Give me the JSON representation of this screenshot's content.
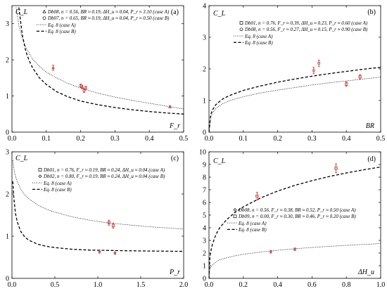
{
  "chart_data": [
    {
      "type": "scatter",
      "panel_label": "(a)",
      "xlabel": "F_r",
      "ylabel": "C_L",
      "xlim": [
        0,
        0.5
      ],
      "ylim": [
        0,
        3.5
      ],
      "xticks": [
        "0.0",
        "0.1",
        "0.2",
        "0.3",
        "0.4",
        "0.5"
      ],
      "xtick_values": [
        0,
        0.1,
        0.2,
        0.3,
        0.4,
        0.5
      ],
      "yticks": [
        "0",
        "1",
        "2",
        "3"
      ],
      "ytick_values": [
        0,
        1,
        2,
        3
      ],
      "legend_placement": "top-center",
      "legend": [
        {
          "marker": "triangle",
          "label": "Db08, n = 0.56, BR ≈ 0.19, ΔH_u ≈ 0.04, P_r ≈ 3.10 (case A)"
        },
        {
          "marker": "circle",
          "label": "Db07, n = 0.65, BR ≈ 0.19, ΔH_u ≈ 0.04, P_r ≈ 0.50 (case B)"
        },
        {
          "line": "dotted",
          "label": "Eq. 8 (case A)"
        },
        {
          "line": "dashed",
          "label": "Eq. 8 (case B)"
        }
      ],
      "series": [
        {
          "name": "Db08",
          "marker": "triangle",
          "points": [
            {
              "x": 0.12,
              "y": 1.78,
              "err": 0.07
            },
            {
              "x": 0.205,
              "y": 1.25,
              "err": 0.05
            },
            {
              "x": 0.46,
              "y": 0.7,
              "err": 0.03
            }
          ]
        },
        {
          "name": "Db07",
          "marker": "circle",
          "points": [
            {
              "x": 0.2,
              "y": 1.28,
              "err": 0.05
            },
            {
              "x": 0.21,
              "y": 1.15,
              "err": 0.05
            },
            {
              "x": 0.215,
              "y": 1.22,
              "err": 0.05
            }
          ]
        }
      ],
      "curves": [
        {
          "name": "Eq. 8 (case A)",
          "style": "dotted",
          "x": [
            0.012,
            0.02,
            0.03,
            0.04,
            0.06,
            0.08,
            0.1,
            0.13,
            0.16,
            0.2,
            0.25,
            0.3,
            0.35,
            0.4,
            0.45,
            0.5
          ],
          "y": [
            3.45,
            2.95,
            2.6,
            2.35,
            2.02,
            1.82,
            1.66,
            1.5,
            1.36,
            1.22,
            1.08,
            0.97,
            0.88,
            0.8,
            0.72,
            0.64
          ]
        },
        {
          "name": "Eq. 8 (case B)",
          "style": "dashed",
          "x": [
            0.02,
            0.03,
            0.04,
            0.05,
            0.06,
            0.08,
            0.1,
            0.13,
            0.16,
            0.2,
            0.25,
            0.3,
            0.35,
            0.4,
            0.45,
            0.5
          ],
          "y": [
            3.45,
            2.7,
            2.25,
            1.98,
            1.78,
            1.5,
            1.32,
            1.12,
            0.99,
            0.86,
            0.76,
            0.68,
            0.62,
            0.57,
            0.53,
            0.5
          ]
        }
      ]
    },
    {
      "type": "scatter",
      "panel_label": "(b)",
      "xlabel": "BR",
      "ylabel": "C_L",
      "xlim": [
        0,
        0.5
      ],
      "ylim": [
        0,
        4
      ],
      "xticks": [
        "0.0",
        "0.1",
        "0.2",
        "0.3",
        "0.4",
        "0.5"
      ],
      "xtick_values": [
        0,
        0.1,
        0.2,
        0.3,
        0.4,
        0.5
      ],
      "yticks": [
        "0",
        "1",
        "2",
        "3",
        "4"
      ],
      "ytick_values": [
        0,
        1,
        2,
        3,
        4
      ],
      "legend_placement": "top-center",
      "legend": [
        {
          "marker": "square",
          "label": "Db01, n = 0.76, F_r ≈ 0.39, ΔH_u ≈ 0.23, P_r ≈ 0.60 (case A)"
        },
        {
          "marker": "circle",
          "label": "Db08, n = 0.56, F_r ≈ 0.27, ΔH_u ≈ 0.15, P_r ≈ 0.90 (case B)"
        },
        {
          "line": "dotted",
          "label": "Eq. 8 (case A)"
        },
        {
          "line": "dashed",
          "label": "Eq. 8 (case B)"
        }
      ],
      "series": [
        {
          "name": "Db01",
          "marker": "square",
          "points": [
            {
              "x": 0.4,
              "y": 1.52,
              "err": 0.07
            },
            {
              "x": 0.44,
              "y": 1.75,
              "err": 0.07
            }
          ]
        },
        {
          "name": "Db08",
          "marker": "circle",
          "points": [
            {
              "x": 0.305,
              "y": 1.95,
              "err": 0.1
            },
            {
              "x": 0.32,
              "y": 2.18,
              "err": 0.1
            }
          ]
        }
      ],
      "curves": [
        {
          "name": "Eq. 8 (case A)",
          "style": "dotted",
          "x": [
            0,
            0.005,
            0.01,
            0.02,
            0.04,
            0.06,
            0.1,
            0.15,
            0.2,
            0.25,
            0.3,
            0.35,
            0.4,
            0.45,
            0.5
          ],
          "y": [
            0,
            0.48,
            0.6,
            0.75,
            0.9,
            1.0,
            1.12,
            1.24,
            1.33,
            1.41,
            1.49,
            1.56,
            1.62,
            1.68,
            1.74
          ]
        },
        {
          "name": "Eq. 8 (case B)",
          "style": "dashed",
          "x": [
            0,
            0.005,
            0.01,
            0.02,
            0.04,
            0.06,
            0.1,
            0.15,
            0.2,
            0.25,
            0.3,
            0.35,
            0.4,
            0.45,
            0.5
          ],
          "y": [
            0,
            0.55,
            0.7,
            0.87,
            1.05,
            1.16,
            1.32,
            1.46,
            1.58,
            1.68,
            1.77,
            1.85,
            1.92,
            1.99,
            2.05
          ]
        }
      ]
    },
    {
      "type": "scatter",
      "panel_label": "(c)",
      "xlabel": "P_r",
      "ylabel": "C_L",
      "xlim": [
        0,
        2
      ],
      "ylim": [
        0,
        3
      ],
      "xticks": [
        "0.0",
        "0.5",
        "1.0",
        "1.5",
        "2.0"
      ],
      "xtick_values": [
        0,
        0.5,
        1,
        1.5,
        2
      ],
      "yticks": [
        "0",
        "1",
        "2",
        "3"
      ],
      "ytick_values": [
        0,
        1,
        2,
        3
      ],
      "legend_placement": "top-center",
      "legend": [
        {
          "marker": "square",
          "label": "Db01, n = 0.76, F_r ≈ 0.19, BR ≈ 0.24, ΔH_u ≈ 0.04 (case A)"
        },
        {
          "marker": "diamond",
          "label": "Db02, n = 0.80, F_r ≈ 0.19, BR ≈ 0.24, ΔH_u ≈ 0.04 (case B)"
        },
        {
          "line": "dotted",
          "label": "Eq. 8 (case A)"
        },
        {
          "line": "dashed",
          "label": "Eq. 8 (case B)"
        }
      ],
      "series": [
        {
          "name": "Db01",
          "marker": "square",
          "points": [
            {
              "x": 1.13,
              "y": 1.32,
              "err": 0.06
            },
            {
              "x": 1.18,
              "y": 1.25,
              "err": 0.06
            }
          ]
        },
        {
          "name": "Db02",
          "marker": "diamond",
          "points": [
            {
              "x": 1.02,
              "y": 0.63,
              "err": 0.03
            },
            {
              "x": 1.2,
              "y": 0.6,
              "err": 0.03
            }
          ]
        }
      ],
      "curves": [
        {
          "name": "Eq. 8 (case A)",
          "style": "dotted",
          "x": [
            0.01,
            0.03,
            0.06,
            0.1,
            0.15,
            0.2,
            0.3,
            0.4,
            0.5,
            0.7,
            0.9,
            1.1,
            1.3,
            1.5,
            1.7,
            2.0
          ],
          "y": [
            2.8,
            2.5,
            2.3,
            2.12,
            1.98,
            1.88,
            1.74,
            1.64,
            1.57,
            1.46,
            1.38,
            1.32,
            1.28,
            1.24,
            1.21,
            1.17
          ]
        },
        {
          "name": "Eq. 8 (case B)",
          "style": "dashed",
          "x": [
            0.01,
            0.02,
            0.04,
            0.06,
            0.1,
            0.15,
            0.2,
            0.3,
            0.4,
            0.5,
            0.7,
            0.9,
            1.2,
            1.5,
            2.0
          ],
          "y": [
            2.3,
            1.95,
            1.55,
            1.35,
            1.12,
            0.98,
            0.9,
            0.81,
            0.76,
            0.73,
            0.69,
            0.67,
            0.66,
            0.65,
            0.64
          ]
        }
      ]
    },
    {
      "type": "scatter",
      "panel_label": "(d)",
      "xlabel": "ΔH_u",
      "ylabel": "C_L",
      "xlim": [
        0,
        1
      ],
      "ylim": [
        0,
        10
      ],
      "xticks": [
        "0.0",
        "0.2",
        "0.4",
        "0.6",
        "0.8",
        "1.0"
      ],
      "xtick_values": [
        0,
        0.2,
        0.4,
        0.6,
        0.8,
        1.0
      ],
      "yticks": [
        "0",
        "1",
        "2",
        "3",
        "4",
        "5",
        "6",
        "7",
        "8",
        "9",
        "10"
      ],
      "ytick_values": [
        0,
        1,
        2,
        3,
        4,
        5,
        6,
        7,
        8,
        9,
        10
      ],
      "legend_placement": "center",
      "legend": [
        {
          "marker": "diamond",
          "label": "Db08, n = 0.56, F_r ≈ 0.38, BR ≈ 0.52, P_r ≈ 0.50 (case A)"
        },
        {
          "marker": "square",
          "label": "Db09, n = 0.00, F_r ≈ 0.30, BR ≈ 0.46, P_r ≈ 0.20 (case B)"
        },
        {
          "line": "dotted",
          "label": "Eq. 8 (case A)"
        },
        {
          "line": "dashed",
          "label": "Eq. 8 (case B)"
        }
      ],
      "series": [
        {
          "name": "Db08",
          "marker": "diamond",
          "points": [
            {
              "x": 0.36,
              "y": 2.1,
              "err": 0.1
            },
            {
              "x": 0.5,
              "y": 2.3,
              "err": 0.1
            }
          ]
        },
        {
          "name": "Db09",
          "marker": "square",
          "points": [
            {
              "x": 0.28,
              "y": 6.5,
              "err": 0.3
            },
            {
              "x": 0.74,
              "y": 8.7,
              "err": 0.35
            }
          ]
        }
      ],
      "curves": [
        {
          "name": "Eq. 8 (case A)",
          "style": "dotted",
          "x": [
            0,
            0.005,
            0.01,
            0.02,
            0.04,
            0.06,
            0.1,
            0.15,
            0.2,
            0.3,
            0.4,
            0.5,
            0.6,
            0.7,
            0.8,
            0.9,
            1.0
          ],
          "y": [
            0,
            0.7,
            0.85,
            1.05,
            1.3,
            1.45,
            1.62,
            1.78,
            1.9,
            2.08,
            2.22,
            2.34,
            2.44,
            2.53,
            2.61,
            2.68,
            2.75
          ]
        },
        {
          "name": "Eq. 8 (case B)",
          "style": "dashed",
          "x": [
            0,
            0.005,
            0.01,
            0.02,
            0.04,
            0.06,
            0.1,
            0.15,
            0.2,
            0.3,
            0.4,
            0.5,
            0.6,
            0.7,
            0.8,
            0.9,
            1.0
          ],
          "y": [
            0,
            1.6,
            2.1,
            2.7,
            3.45,
            3.95,
            4.6,
            5.2,
            5.65,
            6.35,
            6.9,
            7.35,
            7.72,
            8.05,
            8.33,
            8.58,
            8.8
          ]
        }
      ]
    }
  ]
}
